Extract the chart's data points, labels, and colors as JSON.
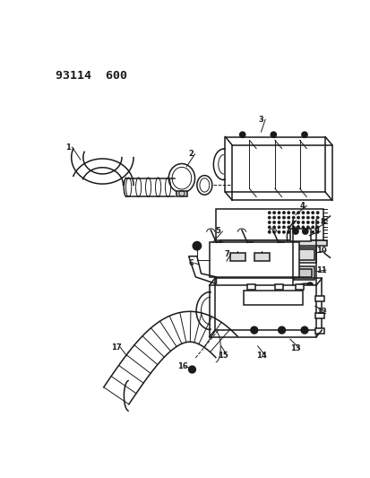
{
  "title": "93114  600",
  "background_color": "#ffffff",
  "line_color": "#1a1a1a",
  "fig_width": 4.14,
  "fig_height": 5.33,
  "dpi": 100
}
